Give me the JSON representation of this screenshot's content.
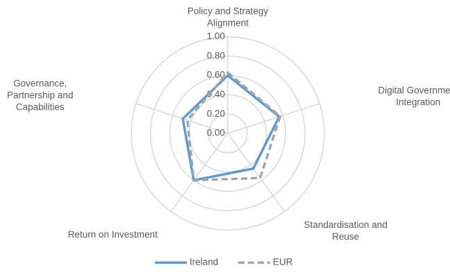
{
  "chart_data": {
    "type": "radar",
    "categories": [
      [
        "Policy and Strategy",
        "Alignment"
      ],
      [
        "Digital Government",
        "Integration"
      ],
      [
        "Standardisation and",
        "Reuse"
      ],
      [
        "Return on Investment"
      ],
      [
        "Governance,",
        "Partnership and",
        "Capabilities"
      ]
    ],
    "series": [
      {
        "name": "Ireland",
        "color": "#5b9bd5",
        "dash": "solid",
        "values": [
          0.6,
          0.56,
          0.45,
          0.6,
          0.49
        ]
      },
      {
        "name": "EUR",
        "color": "#a5a5a5",
        "dash": "dashed",
        "values": [
          0.63,
          0.57,
          0.57,
          0.6,
          0.44
        ]
      }
    ],
    "rlim": [
      0,
      1
    ],
    "rticks": [
      {
        "value": 0,
        "label": "0.00"
      },
      {
        "value": 0.2,
        "label": "0.20"
      },
      {
        "value": 0.4,
        "label": "0.40"
      },
      {
        "value": 0.6,
        "label": "0.60"
      },
      {
        "value": 0.8,
        "label": "0.80"
      },
      {
        "value": 1,
        "label": "1.00"
      }
    ],
    "grid": true,
    "legend": "bottom"
  }
}
